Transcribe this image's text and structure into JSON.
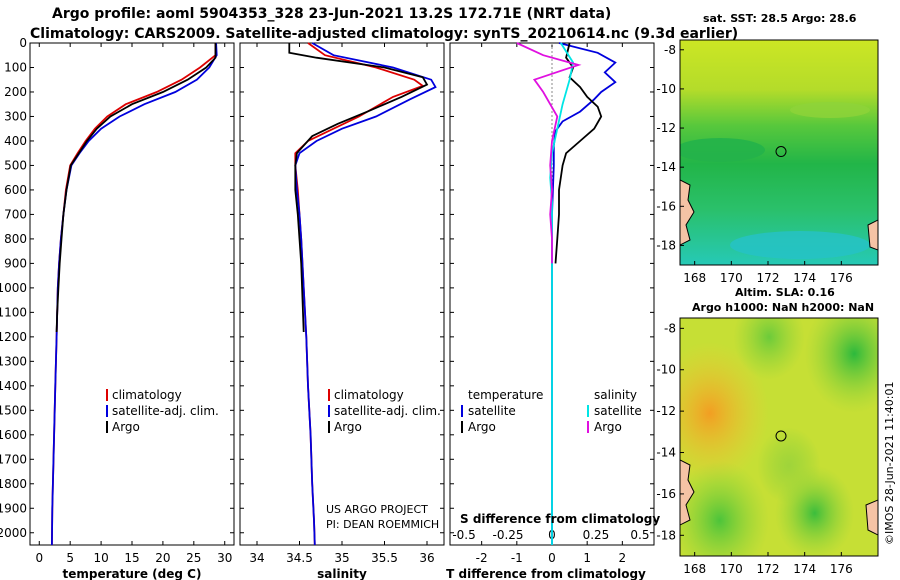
{
  "title_line1": "Argo profile: aoml 5904353_328 23-Jun-2021 13.2S 172.71E (NRT data)",
  "title_line2": "Climatology: CARS2009. Satellite-adjusted climatology: synTS_20210614.nc (9.3d earlier)",
  "sst_title": "sat. SST: 28.5 Argo: 28.6",
  "sla_title1": "Altim. SLA: 0.16",
  "sla_title2": "Argo h1000: NaN h2000: NaN",
  "credit_project": "US ARGO PROJECT",
  "credit_pi": "PI: DEAN ROEMMICH",
  "imos_stamp": "©IMOS 28-Jun-2021 11:40:01",
  "colors": {
    "climatology": "#dd0000",
    "satellite": "#0000dd",
    "argo": "#000000",
    "sat_salinity": "#00e5e5",
    "argo_salinity": "#e010e0"
  },
  "chart_data": [
    {
      "type": "line",
      "id": "temperature-profile",
      "xlabel": "temperature (deg C)",
      "ylabel": "",
      "xlim": [
        -1.5,
        31.5
      ],
      "ylim": [
        2050,
        0
      ],
      "xticks": [
        "0",
        "5",
        "10",
        "15",
        "20",
        "25",
        "30"
      ],
      "xtick_values": [
        0,
        5,
        10,
        15,
        20,
        25,
        30
      ],
      "ytick_values": [
        0,
        100,
        200,
        300,
        400,
        500,
        600,
        700,
        800,
        900,
        1000,
        1100,
        1200,
        1300,
        1400,
        1500,
        1600,
        1700,
        1800,
        1900,
        2000
      ],
      "legend": [
        "climatology",
        "satellite-adj. clim.",
        "Argo"
      ],
      "series": [
        {
          "name": "climatology",
          "x": [
            28.5,
            28.5,
            26,
            23,
            19,
            14,
            11,
            9,
            7.5,
            6.2,
            5,
            4.3,
            3.9,
            3.5,
            3.2,
            3.0,
            2.8,
            2.6,
            2.4,
            2.3,
            2.2,
            2.1,
            2.05
          ],
          "y": [
            0,
            50,
            100,
            150,
            200,
            250,
            300,
            350,
            400,
            450,
            500,
            600,
            700,
            800,
            900,
            1000,
            1200,
            1400,
            1600,
            1700,
            1800,
            1900,
            2050
          ]
        },
        {
          "name": "satellite-adj. clim.",
          "x": [
            28.6,
            28.7,
            27.5,
            25.5,
            22,
            17,
            13,
            10,
            8,
            6.5,
            5.2,
            4.4,
            3.9,
            3.5,
            3.2,
            3.0,
            2.8,
            2.6,
            2.4,
            2.3,
            2.2,
            2.1,
            2.05
          ],
          "y": [
            0,
            50,
            100,
            150,
            200,
            250,
            300,
            350,
            400,
            450,
            500,
            600,
            700,
            800,
            900,
            1000,
            1200,
            1400,
            1600,
            1700,
            1800,
            1900,
            2050
          ]
        },
        {
          "name": "Argo",
          "x": [
            28.5,
            28.5,
            27,
            24,
            20,
            15,
            11.5,
            9.3,
            7.7,
            6.4,
            5.1,
            4.4,
            3.9,
            3.6,
            3.3,
            3.1,
            2.9,
            2.8
          ],
          "y": [
            0,
            60,
            100,
            150,
            200,
            250,
            300,
            350,
            400,
            450,
            500,
            600,
            700,
            800,
            900,
            1000,
            1100,
            1180
          ]
        }
      ]
    },
    {
      "type": "line",
      "id": "salinity-profile",
      "xlabel": "salinity",
      "ylabel": "",
      "xlim": [
        33.8,
        36.2
      ],
      "ylim": [
        2050,
        0
      ],
      "xticks": [
        "34",
        "34.5",
        "35",
        "35.5",
        "36"
      ],
      "xtick_values": [
        34,
        34.5,
        35,
        35.5,
        36
      ],
      "legend": [
        "climatology",
        "satellite-adj. clim.",
        "Argo"
      ],
      "series": [
        {
          "name": "climatology",
          "x": [
            34.6,
            34.8,
            35.4,
            35.85,
            35.95,
            35.6,
            35.2,
            34.9,
            34.6,
            34.45,
            34.45,
            34.48,
            34.5,
            34.52,
            34.55,
            34.58,
            34.6,
            34.63,
            34.65,
            34.67,
            34.68
          ],
          "y": [
            0,
            50,
            100,
            150,
            175,
            220,
            300,
            350,
            400,
            450,
            500,
            600,
            700,
            800,
            1000,
            1200,
            1400,
            1600,
            1800,
            1950,
            2050
          ]
        },
        {
          "name": "satellite-adj. clim.",
          "x": [
            34.65,
            34.9,
            35.6,
            36.05,
            36.1,
            35.8,
            35.4,
            35.0,
            34.7,
            34.5,
            34.45,
            34.47,
            34.5,
            34.52,
            34.55,
            34.58,
            34.6,
            34.63,
            34.65,
            34.67,
            34.68
          ],
          "y": [
            0,
            50,
            100,
            150,
            180,
            230,
            300,
            350,
            400,
            450,
            500,
            600,
            700,
            800,
            1000,
            1200,
            1400,
            1600,
            1800,
            1950,
            2050
          ]
        },
        {
          "name": "Argo",
          "x": [
            34.38,
            34.38,
            34.7,
            35.5,
            35.95,
            36.0,
            35.7,
            35.3,
            34.95,
            34.65,
            34.47,
            34.45,
            34.45,
            34.48,
            34.5,
            34.52,
            34.53,
            34.55
          ],
          "y": [
            0,
            40,
            60,
            100,
            140,
            170,
            220,
            280,
            330,
            380,
            450,
            500,
            600,
            700,
            800,
            900,
            1000,
            1180
          ]
        }
      ]
    },
    {
      "type": "line",
      "id": "difference-profile",
      "xlabel": "T difference from climatology",
      "top_label": "S difference from climatology",
      "xlim": [
        -2.9,
        2.9
      ],
      "ylim": [
        2050,
        0
      ],
      "xticks": [
        "-2",
        "-1",
        "0",
        "1",
        "2"
      ],
      "xtick_values": [
        -2,
        -1,
        0,
        1,
        2
      ],
      "sticks": [
        "-0.5",
        "-0.25",
        "0",
        "0.25",
        "0.5"
      ],
      "stick_values": [
        -0.5,
        -0.25,
        0,
        0.25,
        0.5
      ],
      "s_scale_per_t": 5,
      "legend_left_title": "temperature",
      "legend_right_title": "salinity",
      "legend": [
        "satellite",
        "Argo",
        "satellite",
        "Argo"
      ],
      "series": [
        {
          "name": "T satellite",
          "x": [
            0.2,
            1.3,
            1.8,
            1.5,
            1.8,
            1.4,
            1.2,
            0.8,
            0.3,
            0.1,
            0.05,
            0.05,
            0.0,
            0.0,
            0.0,
            0.0,
            0.0
          ],
          "y": [
            0,
            40,
            80,
            120,
            160,
            200,
            230,
            280,
            320,
            360,
            420,
            500,
            700,
            900,
            1200,
            1600,
            2050
          ]
        },
        {
          "name": "T Argo",
          "x": [
            0.5,
            0.4,
            0.6,
            0.5,
            0.8,
            1.0,
            1.3,
            1.4,
            1.2,
            0.8,
            0.4,
            0.3,
            0.2,
            0.2,
            0.15,
            0.1
          ],
          "y": [
            0,
            60,
            100,
            140,
            180,
            220,
            260,
            300,
            350,
            400,
            450,
            500,
            600,
            700,
            800,
            900
          ]
        },
        {
          "name": "S satellite",
          "x": [
            0.05,
            0.12,
            0.1,
            0.06,
            0.03,
            0.0,
            -0.01,
            0.0,
            0.0,
            0.0,
            0.0,
            0.0
          ],
          "y": [
            0,
            80,
            150,
            250,
            350,
            450,
            550,
            650,
            800,
            1200,
            1600,
            2050
          ]
        },
        {
          "name": "S Argo",
          "x": [
            -0.2,
            -0.05,
            0.15,
            -0.1,
            -0.05,
            0.03,
            0.0,
            -0.01,
            0.0,
            -0.01,
            0.0,
            0.0
          ],
          "y": [
            0,
            50,
            90,
            150,
            200,
            300,
            400,
            500,
            600,
            700,
            800,
            900
          ]
        }
      ]
    },
    {
      "type": "heatmap",
      "id": "sst-map",
      "title": "sat. SST: 28.5 Argo: 28.6",
      "xticks": [
        "168",
        "170",
        "172",
        "174",
        "176"
      ],
      "xtick_values": [
        168,
        170,
        172,
        174,
        176
      ],
      "yticks": [
        "-8",
        "-10",
        "-12",
        "-14",
        "-16",
        "-18"
      ],
      "ytick_values": [
        -8,
        -10,
        -12,
        -14,
        -16,
        -18
      ],
      "xlim": [
        167.2,
        178
      ],
      "ylim": [
        -19,
        -7.5
      ],
      "argo_lon": 172.71,
      "argo_lat": -13.2
    },
    {
      "type": "heatmap",
      "id": "sla-map",
      "title": "Argo h1000: NaN h2000: NaN",
      "xticks": [
        "168",
        "170",
        "172",
        "174",
        "176"
      ],
      "xtick_values": [
        168,
        170,
        172,
        174,
        176
      ],
      "yticks": [
        "-8",
        "-10",
        "-12",
        "-14",
        "-16",
        "-18"
      ],
      "ytick_values": [
        -8,
        -10,
        -12,
        -14,
        -16,
        -18
      ],
      "xlim": [
        167.2,
        178
      ],
      "ylim": [
        -19,
        -7.5
      ],
      "argo_lon": 172.71,
      "argo_lat": -13.2
    }
  ]
}
